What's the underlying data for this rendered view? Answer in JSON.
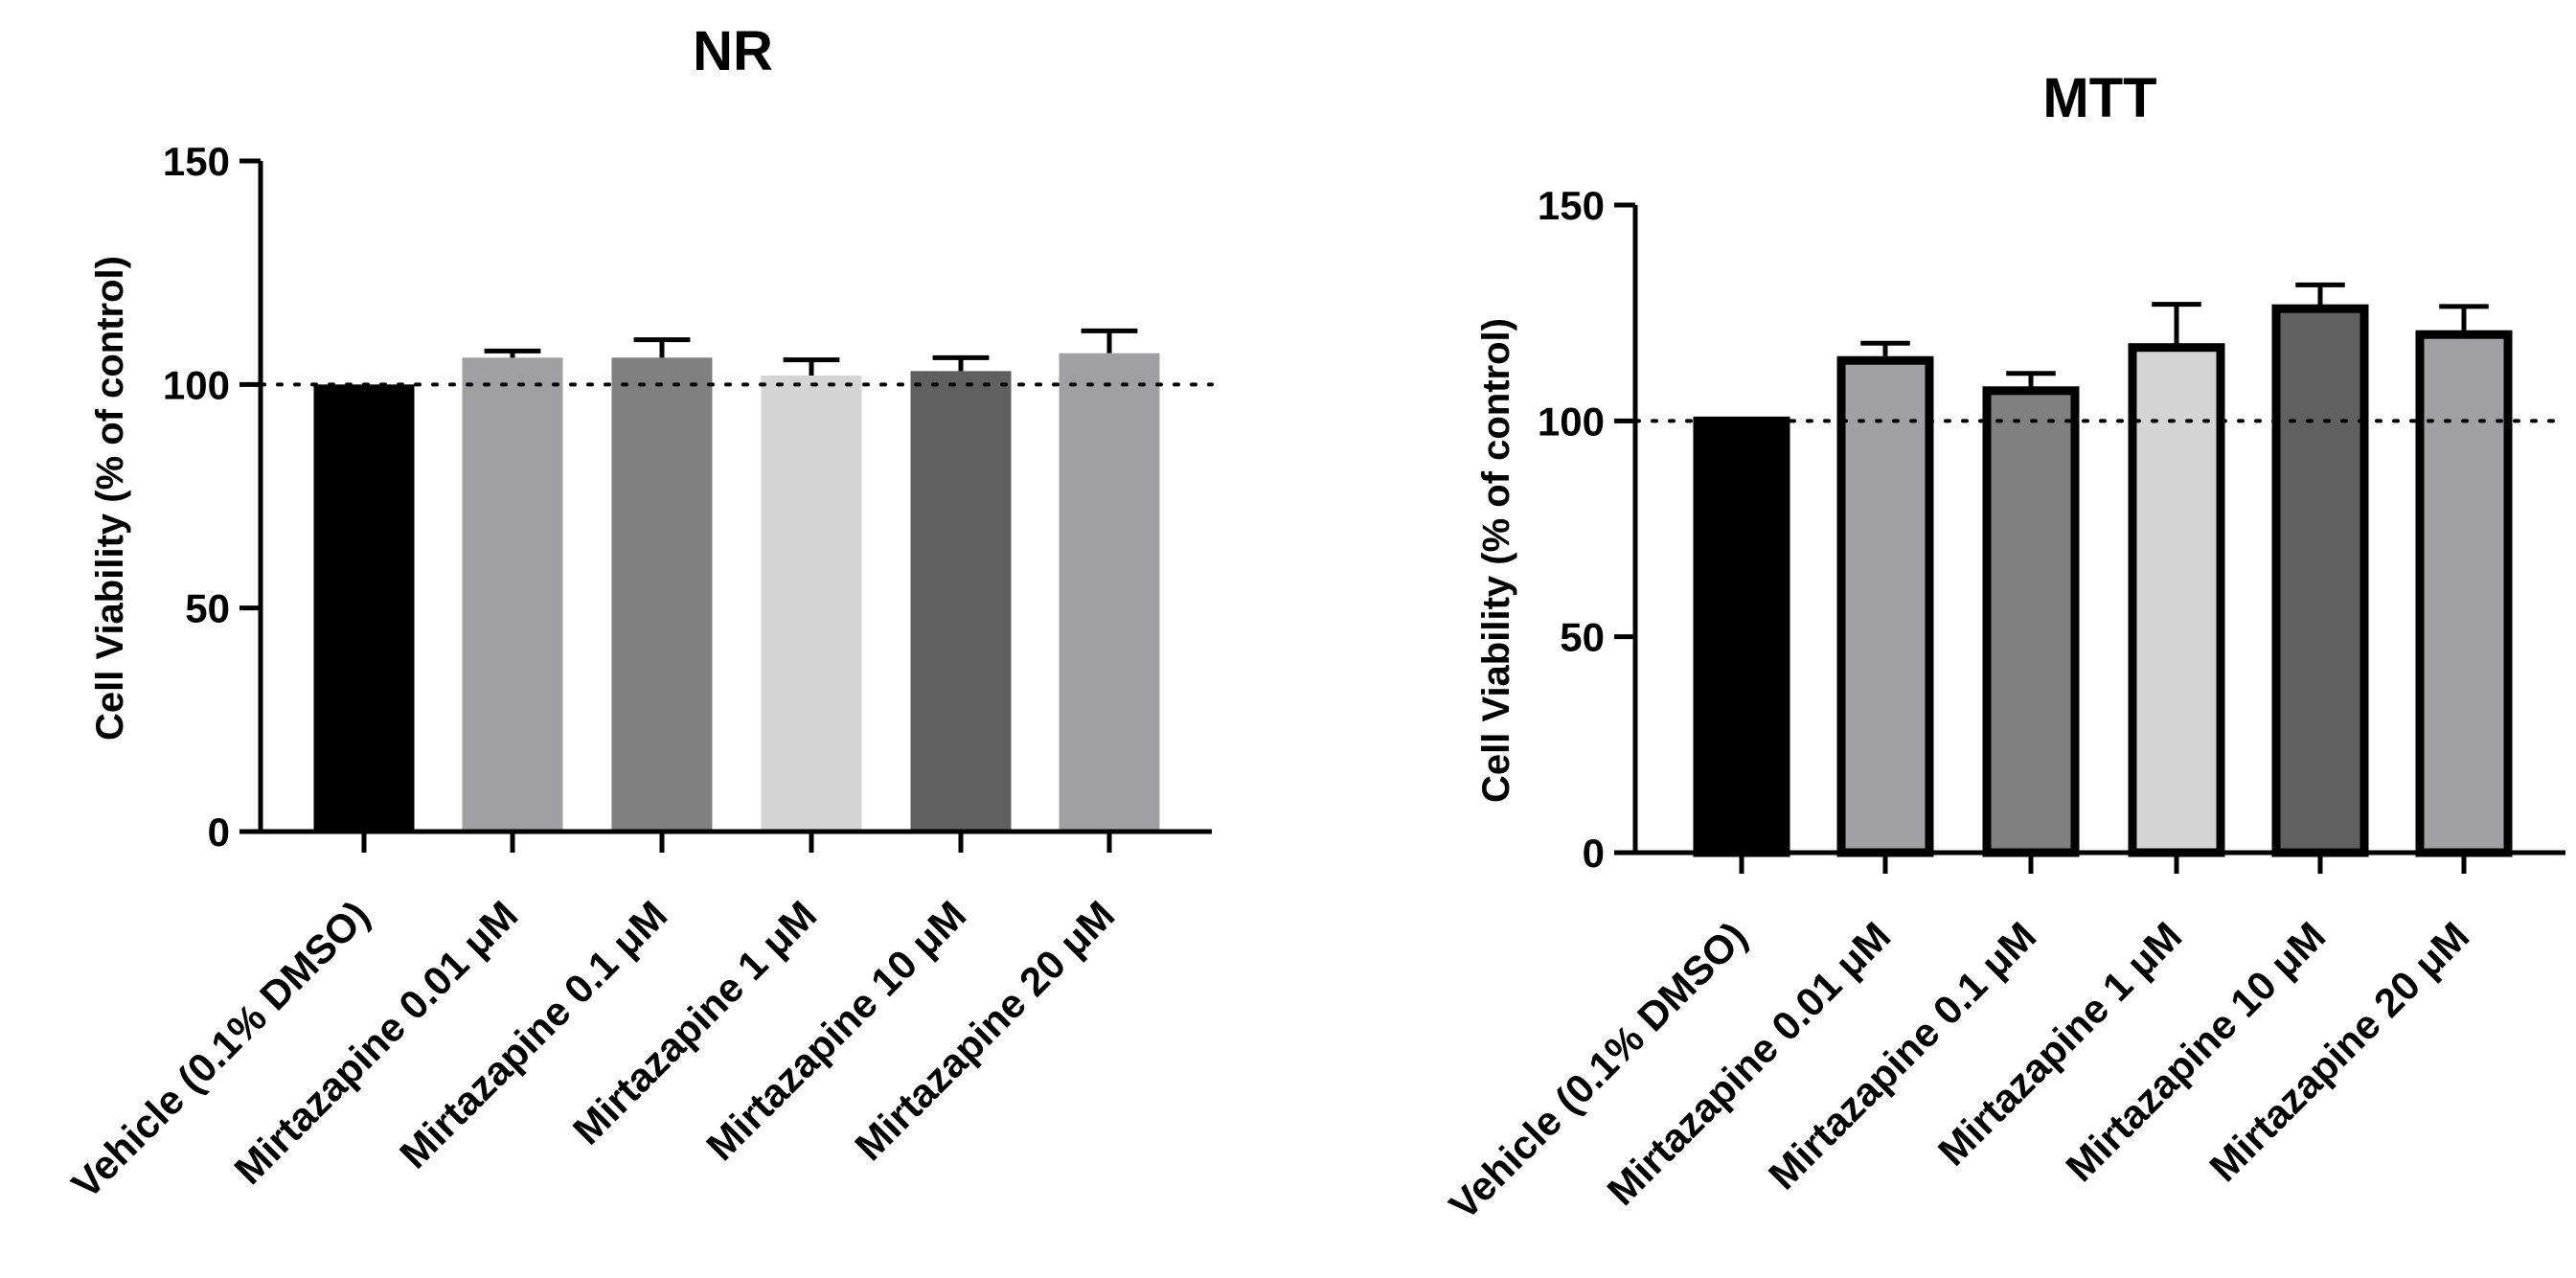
{
  "chart_data": [
    {
      "type": "bar",
      "title": "NR",
      "ylabel": "Cell Viability (% of control)",
      "xlabel": "",
      "ylim": [
        0,
        150
      ],
      "yticks": [
        0,
        50,
        100,
        150
      ],
      "reference_line": 100,
      "categories": [
        "Vehicle (0.1% DMSO)",
        "Mirtazapine 0.01 μM",
        "Mirtazapine 0.1 μM",
        "Mirtazapine 1 μM",
        "Mirtazapine 10 μM",
        "Mirtazapine 20 μM"
      ],
      "values": [
        100,
        106,
        106,
        102,
        103,
        107
      ],
      "errors": [
        0,
        1.5,
        4,
        3.5,
        3,
        5
      ],
      "colors": [
        "#000000",
        "#a0a0a4",
        "#808080",
        "#d4d4d4",
        "#606060",
        "#a0a0a4"
      ],
      "bar_outline": false
    },
    {
      "type": "bar",
      "title": "MTT",
      "ylabel": "Cell Viability (% of control)",
      "xlabel": "",
      "ylim": [
        0,
        150
      ],
      "yticks": [
        0,
        50,
        100,
        150
      ],
      "reference_line": 100,
      "categories": [
        "Vehicle (0.1% DMSO)",
        "Mirtazapine 0.01 μM",
        "Mirtazapine 0.1 μM",
        "Mirtazapine 1 μM",
        "Mirtazapine 10 μM",
        "Mirtazapine 20 μM"
      ],
      "values": [
        100,
        114,
        107,
        117,
        126,
        120
      ],
      "errors": [
        0,
        4,
        4,
        10,
        5.5,
        6.5
      ],
      "colors": [
        "#000000",
        "#a0a0a4",
        "#808080",
        "#d4d4d4",
        "#606060",
        "#a0a0a4"
      ],
      "bar_outline": true
    }
  ]
}
